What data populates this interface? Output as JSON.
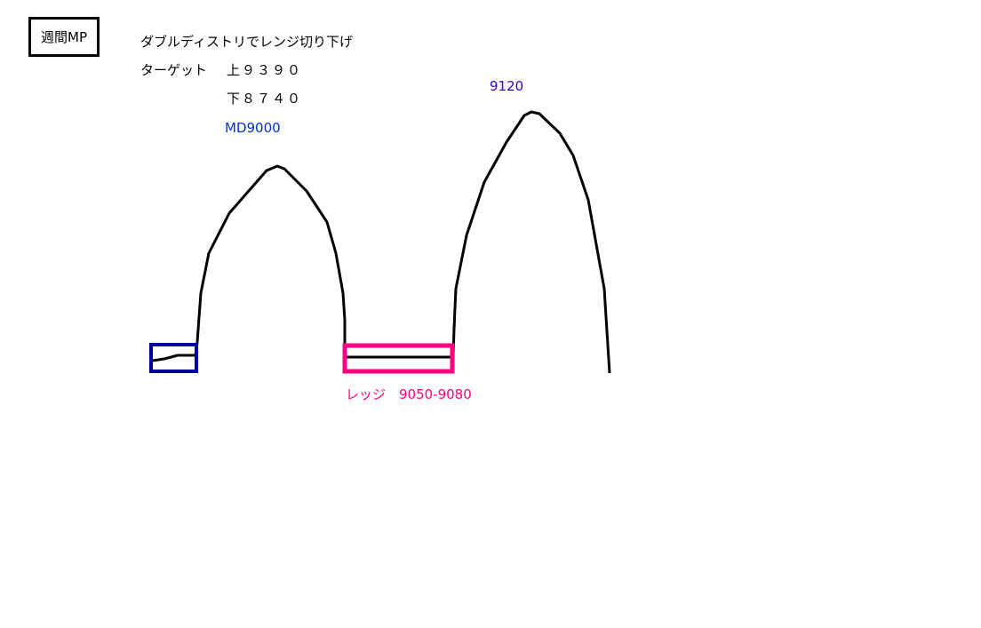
{
  "title_box": "週間MP",
  "lines": {
    "strategy": "ダブルディストリでレンジ切り下げ",
    "target_label": "ターゲット",
    "upper": "上９３９０",
    "lower": "下８７４０",
    "md": "MD9000",
    "peak": "9120",
    "ledge": "レッジ　9050-9080"
  },
  "colors": {
    "md": "#0033cc",
    "peak": "#3300cc",
    "ledge": "#ff0080",
    "blue_box": "#0000a0",
    "curve": "#000000"
  }
}
